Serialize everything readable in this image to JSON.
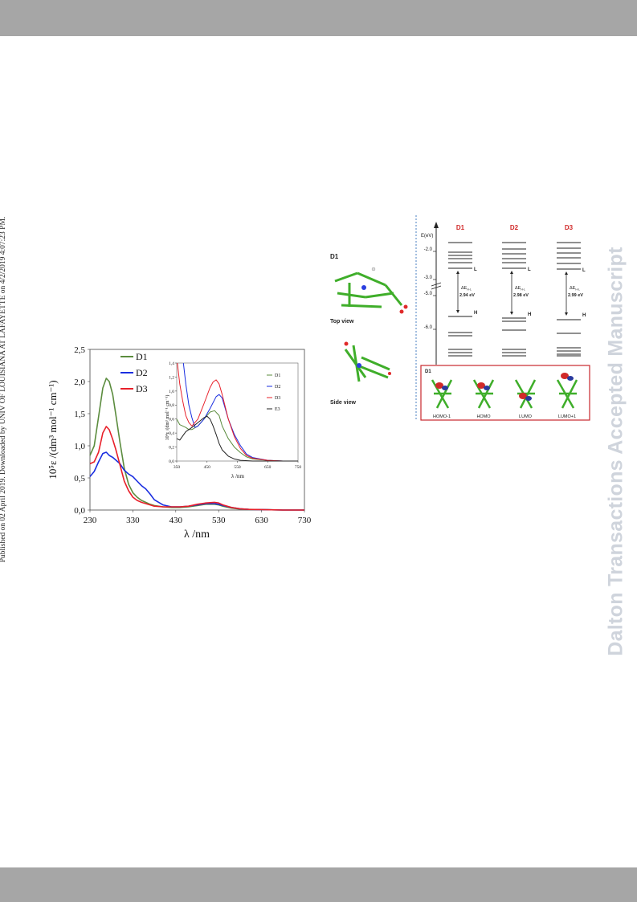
{
  "header": {
    "bar": ""
  },
  "side_note": "Published on 02 April 2019. Downloaded by UNIV OF LOUISIANA AT LAFAYETTE on 4/2/2019 4:07:23 PM.",
  "watermark": "Dalton Transactions Accepted Manuscript",
  "colors": {
    "D1": "#5b8c3e",
    "D2": "#1a2ee0",
    "D3": "#e8202a",
    "E3": "#222222",
    "accent_red": "#d12a2a"
  },
  "chart_data": [
    {
      "type": "line",
      "title": "",
      "xlabel": "λ /nm",
      "ylabel": "10⁵ε /(dm³ mol⁻¹ cm⁻¹)",
      "xlim": [
        230,
        730
      ],
      "ylim": [
        0,
        2.5
      ],
      "x_ticks": [
        "230",
        "330",
        "430",
        "530",
        "630",
        "730"
      ],
      "y_ticks": [
        "0,0",
        "0,5",
        "1,0",
        "1,5",
        "2,0",
        "2,5"
      ],
      "legend": {
        "position": "top-left",
        "entries": [
          "D1",
          "D2",
          "D3"
        ]
      },
      "series": [
        {
          "name": "D1",
          "color": "#5b8c3e",
          "x": [
            230,
            240,
            250,
            260,
            268,
            275,
            283,
            290,
            300,
            310,
            320,
            330,
            340,
            350,
            360,
            370,
            380,
            400,
            420,
            440,
            460,
            480,
            500,
            520,
            530,
            540,
            560,
            580,
            600,
            640,
            680,
            730
          ],
          "y": [
            0.85,
            1.0,
            1.45,
            1.9,
            2.05,
            2.0,
            1.8,
            1.5,
            1.05,
            0.65,
            0.4,
            0.27,
            0.2,
            0.15,
            0.12,
            0.09,
            0.07,
            0.05,
            0.04,
            0.04,
            0.05,
            0.07,
            0.09,
            0.09,
            0.08,
            0.06,
            0.03,
            0.015,
            0.01,
            0.005,
            0.0,
            0.0
          ]
        },
        {
          "name": "D2",
          "color": "#1a2ee0",
          "x": [
            230,
            240,
            250,
            260,
            268,
            275,
            283,
            290,
            300,
            310,
            320,
            330,
            340,
            350,
            360,
            370,
            380,
            400,
            420,
            440,
            460,
            480,
            500,
            520,
            530,
            540,
            560,
            580,
            600,
            640,
            680,
            730
          ],
          "y": [
            0.52,
            0.6,
            0.75,
            0.88,
            0.9,
            0.85,
            0.82,
            0.78,
            0.72,
            0.62,
            0.56,
            0.52,
            0.45,
            0.38,
            0.33,
            0.25,
            0.16,
            0.08,
            0.05,
            0.05,
            0.06,
            0.08,
            0.1,
            0.1,
            0.09,
            0.07,
            0.04,
            0.02,
            0.01,
            0.005,
            0.0,
            0.0
          ]
        },
        {
          "name": "D3",
          "color": "#e8202a",
          "x": [
            230,
            240,
            250,
            260,
            268,
            275,
            283,
            290,
            300,
            310,
            320,
            330,
            340,
            350,
            360,
            370,
            380,
            400,
            420,
            440,
            460,
            480,
            500,
            520,
            530,
            540,
            560,
            580,
            600,
            640,
            680,
            730
          ],
          "y": [
            0.72,
            0.75,
            0.9,
            1.2,
            1.3,
            1.25,
            1.1,
            0.95,
            0.7,
            0.45,
            0.3,
            0.2,
            0.15,
            0.12,
            0.1,
            0.08,
            0.06,
            0.05,
            0.05,
            0.05,
            0.06,
            0.09,
            0.11,
            0.12,
            0.11,
            0.08,
            0.04,
            0.02,
            0.01,
            0.005,
            0.0,
            0.0
          ]
        }
      ]
    },
    {
      "type": "line",
      "title": "",
      "xlabel": "λ /nm",
      "ylabel": "10⁴ε /(dm³ mol⁻¹ cm⁻¹)",
      "xlim": [
        350,
        750
      ],
      "ylim": [
        0,
        1.4
      ],
      "x_ticks": [
        "350",
        "450",
        "550",
        "650",
        "750"
      ],
      "y_ticks": [
        "0,0",
        "0,2",
        "0,4",
        "0,6",
        "0,8",
        "1,0",
        "1,2",
        "1,4"
      ],
      "legend": {
        "position": "right",
        "entries": [
          "D1",
          "D2",
          "D3",
          "E3"
        ]
      },
      "series": [
        {
          "name": "D1",
          "color": "#5b8c3e",
          "x": [
            350,
            360,
            370,
            380,
            390,
            400,
            420,
            440,
            460,
            475,
            490,
            500,
            520,
            540,
            560,
            580,
            600,
            650,
            700,
            750
          ],
          "y": [
            0.6,
            0.52,
            0.5,
            0.48,
            0.45,
            0.45,
            0.5,
            0.6,
            0.7,
            0.72,
            0.65,
            0.5,
            0.32,
            0.2,
            0.12,
            0.06,
            0.03,
            0.01,
            0.0,
            0.0
          ]
        },
        {
          "name": "D2",
          "color": "#1a2ee0",
          "x": [
            372,
            380,
            390,
            400,
            410,
            420,
            440,
            460,
            480,
            490,
            500,
            510,
            520,
            540,
            560,
            580,
            600,
            650,
            700,
            750
          ],
          "y": [
            1.4,
            1.1,
            0.8,
            0.62,
            0.48,
            0.5,
            0.6,
            0.75,
            0.92,
            0.95,
            0.9,
            0.75,
            0.6,
            0.38,
            0.22,
            0.1,
            0.05,
            0.01,
            0.0,
            0.0
          ]
        },
        {
          "name": "D3",
          "color": "#e8202a",
          "x": [
            352,
            360,
            370,
            380,
            390,
            400,
            420,
            440,
            460,
            470,
            480,
            490,
            500,
            520,
            540,
            560,
            580,
            600,
            650,
            700,
            750
          ],
          "y": [
            1.4,
            1.1,
            0.85,
            0.65,
            0.55,
            0.5,
            0.6,
            0.82,
            1.05,
            1.13,
            1.16,
            1.1,
            0.95,
            0.6,
            0.35,
            0.18,
            0.08,
            0.04,
            0.01,
            0.0,
            0.0
          ]
        },
        {
          "name": "E3",
          "color": "#222222",
          "x": [
            350,
            360,
            370,
            380,
            400,
            420,
            440,
            450,
            460,
            470,
            480,
            490,
            500,
            520,
            540,
            560,
            600,
            650,
            700,
            750
          ],
          "y": [
            0.32,
            0.3,
            0.36,
            0.42,
            0.48,
            0.55,
            0.62,
            0.64,
            0.6,
            0.5,
            0.38,
            0.25,
            0.16,
            0.07,
            0.03,
            0.01,
            0.0,
            0.0,
            0.0,
            0.0
          ]
        }
      ]
    }
  ],
  "molecule_panel": {
    "title": "D1",
    "top_view": "Top view",
    "side_view": "Side view"
  },
  "energy_diagram": {
    "axis_label": "E(eV)",
    "ticks": [
      "-2.0",
      "-3.0",
      "-5.0",
      "-6.0"
    ],
    "columns": [
      {
        "name": "D1",
        "gap_label": "ΔE",
        "gap_sub": "H-L",
        "gap_value": "2.94 eV"
      },
      {
        "name": "D2",
        "gap_label": "ΔE",
        "gap_sub": "H-L",
        "gap_value": "2.98 eV"
      },
      {
        "name": "D3",
        "gap_label": "ΔE",
        "gap_sub": "H-L",
        "gap_value": "2.99 eV"
      }
    ],
    "level_L": "L",
    "level_H": "H",
    "orbital_box_title": "D1",
    "orbitals": [
      "HOMO-1",
      "HOMO",
      "LUMO",
      "LUMO+1"
    ]
  }
}
